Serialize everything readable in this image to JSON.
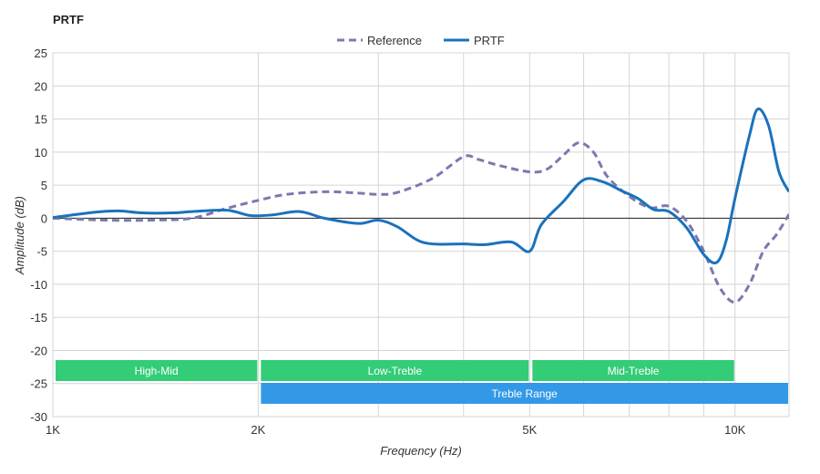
{
  "chart_data": {
    "type": "line",
    "title": "PRTF",
    "xlabel": "Frequency (Hz)",
    "ylabel": "Amplitude (dB)",
    "xscale": "log",
    "xlim": [
      1000,
      12000
    ],
    "ylim": [
      -30,
      25
    ],
    "grid": true,
    "legend_position": "top-center",
    "x_ticks": [
      {
        "value": 1000,
        "label": "1K"
      },
      {
        "value": 2000,
        "label": "2K"
      },
      {
        "value": 5000,
        "label": "5K"
      },
      {
        "value": 10000,
        "label": "10K"
      }
    ],
    "y_ticks": [
      25,
      20,
      15,
      10,
      5,
      0,
      -5,
      -10,
      -15,
      -20,
      -25,
      -30
    ],
    "series": [
      {
        "name": "Reference",
        "color": "#7b78b0",
        "style": "dashed",
        "points": [
          [
            1000,
            0
          ],
          [
            1200,
            -0.3
          ],
          [
            1400,
            -0.3
          ],
          [
            1600,
            0
          ],
          [
            1800,
            1.5
          ],
          [
            2000,
            2.7
          ],
          [
            2200,
            3.6
          ],
          [
            2500,
            4
          ],
          [
            2800,
            3.8
          ],
          [
            3000,
            3.6
          ],
          [
            3200,
            3.9
          ],
          [
            3600,
            6
          ],
          [
            4000,
            9.3
          ],
          [
            4200,
            8.9
          ],
          [
            4500,
            8
          ],
          [
            5000,
            7
          ],
          [
            5300,
            7.4
          ],
          [
            5600,
            9.5
          ],
          [
            5900,
            11.4
          ],
          [
            6200,
            10
          ],
          [
            6500,
            6.3
          ],
          [
            7000,
            3.3
          ],
          [
            7500,
            1.6
          ],
          [
            8000,
            1.8
          ],
          [
            8500,
            -0.5
          ],
          [
            9000,
            -5
          ],
          [
            9500,
            -10.5
          ],
          [
            10000,
            -12.7
          ],
          [
            10500,
            -10
          ],
          [
            11000,
            -5
          ],
          [
            11500,
            -2.5
          ],
          [
            12000,
            0.6
          ]
        ]
      },
      {
        "name": "PRTF",
        "color": "#1a72bb",
        "style": "solid",
        "points": [
          [
            1000,
            0.1
          ],
          [
            1150,
            0.9
          ],
          [
            1250,
            1.1
          ],
          [
            1350,
            0.8
          ],
          [
            1500,
            0.8
          ],
          [
            1600,
            1
          ],
          [
            1800,
            1.2
          ],
          [
            1950,
            0.4
          ],
          [
            2100,
            0.5
          ],
          [
            2300,
            1
          ],
          [
            2500,
            0
          ],
          [
            2800,
            -0.8
          ],
          [
            3000,
            -0.3
          ],
          [
            3200,
            -1.3
          ],
          [
            3500,
            -3.7
          ],
          [
            4000,
            -3.9
          ],
          [
            4300,
            -4
          ],
          [
            4700,
            -3.6
          ],
          [
            5000,
            -5
          ],
          [
            5200,
            -1
          ],
          [
            5600,
            2.5
          ],
          [
            6000,
            5.8
          ],
          [
            6400,
            5.5
          ],
          [
            6800,
            4.2
          ],
          [
            7200,
            3
          ],
          [
            7600,
            1.3
          ],
          [
            8000,
            1
          ],
          [
            8500,
            -1.5
          ],
          [
            9000,
            -5.5
          ],
          [
            9400,
            -6.7
          ],
          [
            9700,
            -3.5
          ],
          [
            10000,
            3
          ],
          [
            10500,
            12.5
          ],
          [
            10800,
            16.5
          ],
          [
            11200,
            14
          ],
          [
            11600,
            7
          ],
          [
            12000,
            4
          ]
        ]
      }
    ],
    "bands": [
      {
        "label": "High-Mid",
        "from": 1000,
        "to": 2000,
        "row": 1,
        "color": "#33cc77"
      },
      {
        "label": "Low-Treble",
        "from": 2000,
        "to": 5000,
        "row": 1,
        "color": "#33cc77"
      },
      {
        "label": "Mid-Treble",
        "from": 5000,
        "to": 10000,
        "row": 1,
        "color": "#33cc77"
      },
      {
        "label": "Treble Range",
        "from": 2000,
        "to": 12000,
        "row": 2,
        "color": "#3399e6"
      }
    ]
  }
}
